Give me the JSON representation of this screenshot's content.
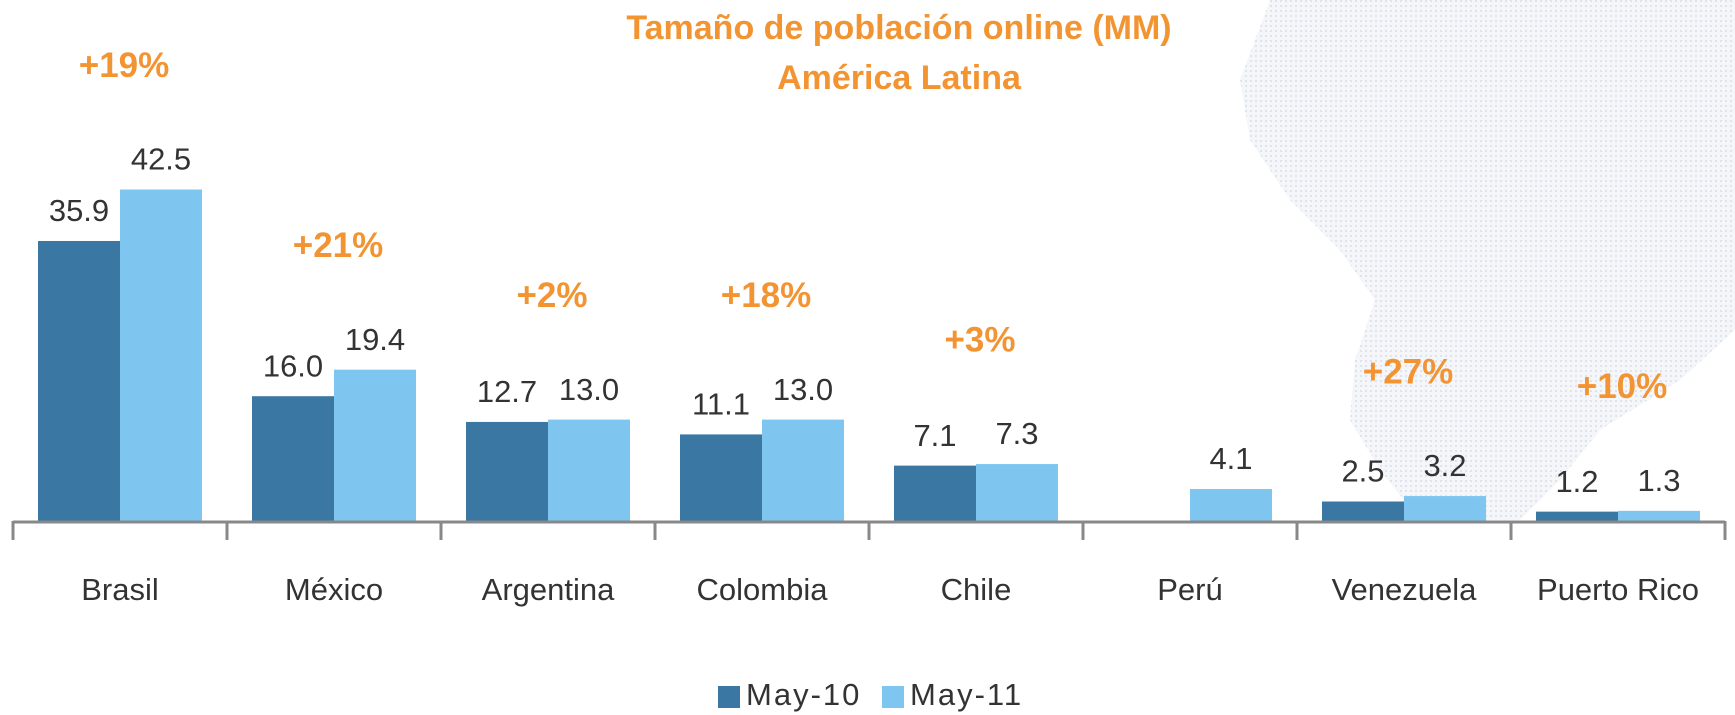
{
  "chart_data": {
    "type": "bar",
    "title": "Tamaño de población online (MM)",
    "subtitle": "América Latina",
    "categories": [
      "Brasil",
      "México",
      "Argentina",
      "Colombia",
      "Chile",
      "Perú",
      "Venezuela",
      "Puerto Rico"
    ],
    "series": [
      {
        "name": "May-10",
        "color": "#3a77a3",
        "values": [
          35.9,
          16.0,
          12.7,
          11.1,
          7.1,
          null,
          2.5,
          1.2
        ],
        "value_labels": [
          "35.9",
          "16.0",
          "12.7",
          "11.1",
          "7.1",
          null,
          "2.5",
          "1.2"
        ]
      },
      {
        "name": "May-11",
        "color": "#7ec6ef",
        "values": [
          42.5,
          19.4,
          13.0,
          13.0,
          7.3,
          4.1,
          3.2,
          1.3
        ],
        "value_labels": [
          "42.5",
          "19.4",
          "13.0",
          "13.0",
          "7.3",
          "4.1",
          "3.2",
          "1.3"
        ]
      }
    ],
    "growth_labels": [
      "+19%",
      "+21%",
      "+2%",
      "+18%",
      "+3%",
      null,
      "+27%",
      "+10%"
    ],
    "ylim": [
      0,
      45
    ],
    "legend": "bottom"
  }
}
